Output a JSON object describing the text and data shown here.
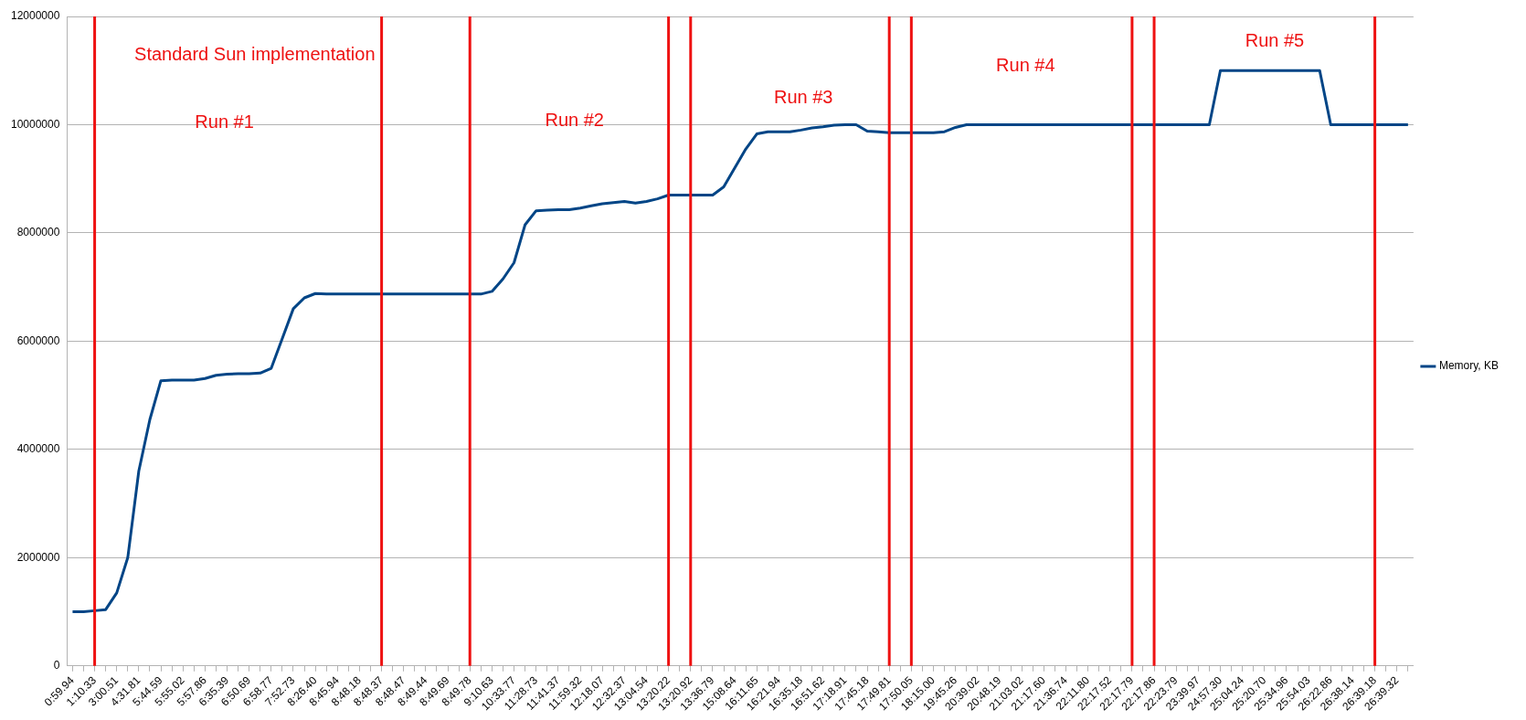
{
  "chart_data": {
    "type": "line",
    "categories": [
      "0:59.94",
      null,
      "1:10.33",
      null,
      "3:00.51",
      null,
      "4:31.81",
      null,
      "5:44.59",
      null,
      "5:55.02",
      null,
      "5:57.86",
      null,
      "6:35.39",
      null,
      "6:50.69",
      null,
      "6:58.77",
      null,
      "7:52.73",
      null,
      "8:26.40",
      null,
      "8:45.94",
      null,
      "8:48.18",
      null,
      "8:48.37",
      null,
      "8:48.47",
      null,
      "8:49.44",
      null,
      "8:49.69",
      null,
      "8:49.78",
      null,
      "9:10.63",
      null,
      "10:33.77",
      null,
      "11:28.73",
      null,
      "11:41.37",
      null,
      "11:59.32",
      null,
      "12:18.07",
      null,
      "12:32.37",
      null,
      "13:04.54",
      null,
      "13:20.22",
      null,
      "13:20.92",
      null,
      "13:36.79",
      null,
      "15:08.64",
      null,
      "16:11.65",
      null,
      "16:21.94",
      null,
      "16:35.18",
      null,
      "16:51.62",
      null,
      "17:18.91",
      null,
      "17:45.18",
      null,
      "17:49.81",
      null,
      "17:50.05",
      null,
      "18:15.00",
      null,
      "19:45.26",
      null,
      "20:39.02",
      null,
      "20:48.19",
      null,
      "21:03.02",
      null,
      "21:17.60",
      null,
      "21:36.74",
      null,
      "22:11.80",
      null,
      "22:17.52",
      null,
      "22:17.79",
      null,
      "22:17.86",
      null,
      "22:23.79",
      null,
      "23:39.97",
      null,
      "24:57.30",
      null,
      "25:04.24",
      null,
      "25:20.70",
      null,
      "25:34.96",
      null,
      "25:54.03",
      null,
      "26:22.86",
      null,
      "26:38.14",
      null,
      "26:39.18",
      null,
      "26:39.32",
      null
    ],
    "series": [
      {
        "name": "Memory, KB",
        "color": "#004586",
        "values": [
          1000000,
          1000000,
          1020000,
          1040000,
          1350000,
          2000000,
          3600000,
          4550000,
          5270000,
          5280000,
          5280000,
          5280000,
          5310000,
          5370000,
          5390000,
          5400000,
          5400000,
          5410000,
          5500000,
          6050000,
          6600000,
          6800000,
          6880000,
          6870000,
          6870000,
          6870000,
          6870000,
          6870000,
          6870000,
          6870000,
          6870000,
          6870000,
          6870000,
          6870000,
          6870000,
          6870000,
          6870000,
          6870000,
          6920000,
          7150000,
          7450000,
          8150000,
          8410000,
          8420000,
          8430000,
          8430000,
          8460000,
          8500000,
          8540000,
          8560000,
          8580000,
          8550000,
          8580000,
          8630000,
          8700000,
          8700000,
          8700000,
          8700000,
          8700000,
          8850000,
          9200000,
          9550000,
          9830000,
          9870000,
          9870000,
          9870000,
          9900000,
          9940000,
          9960000,
          9990000,
          10000000,
          10000000,
          9880000,
          9870000,
          9850000,
          9850000,
          9850000,
          9850000,
          9850000,
          9870000,
          9950000,
          10000000,
          10000000,
          10000000,
          10000000,
          10000000,
          10000000,
          10000000,
          10000000,
          10000000,
          10000000,
          10000000,
          10000000,
          10000000,
          10000000,
          10000000,
          10000000,
          10000000,
          10000000,
          10000000,
          10000000,
          10000000,
          10000000,
          10000000,
          11000000,
          11000000,
          11000000,
          11000000,
          11000000,
          11000000,
          11000000,
          11000000,
          11000000,
          11000000,
          10000000,
          10000000,
          10000000,
          10000000,
          10000000,
          10000000,
          10000000,
          10000000
        ]
      }
    ],
    "ylim": [
      0,
      12000000
    ],
    "yticks": [
      0,
      2000000,
      4000000,
      6000000,
      8000000,
      10000000,
      12000000
    ],
    "grid": "y",
    "legend": "right",
    "marker": "none",
    "line_style": "solid",
    "ref_lines": [
      {
        "axis": "x",
        "value": "1:10.33",
        "color": "#ee1111"
      },
      {
        "axis": "x",
        "value": "8:48.37",
        "color": "#ee1111"
      },
      {
        "axis": "x",
        "value": "8:49.78",
        "color": "#ee1111"
      },
      {
        "axis": "x",
        "value": "13:20.22",
        "color": "#ee1111"
      },
      {
        "axis": "x",
        "value": "13:20.92",
        "color": "#ee1111"
      },
      {
        "axis": "x",
        "value": "17:49.81",
        "color": "#ee1111"
      },
      {
        "axis": "x",
        "value": "17:50.05",
        "color": "#ee1111"
      },
      {
        "axis": "x",
        "value": "22:17.79",
        "color": "#ee1111"
      },
      {
        "axis": "x",
        "value": "22:17.86",
        "color": "#ee1111"
      },
      {
        "axis": "x",
        "value": "26:39.18",
        "color": "#ee1111"
      }
    ],
    "annotations": [
      "Standard Sun implementation",
      "Run #1",
      "Run #2",
      "Run #3",
      "Run #4",
      "Run #5"
    ]
  }
}
